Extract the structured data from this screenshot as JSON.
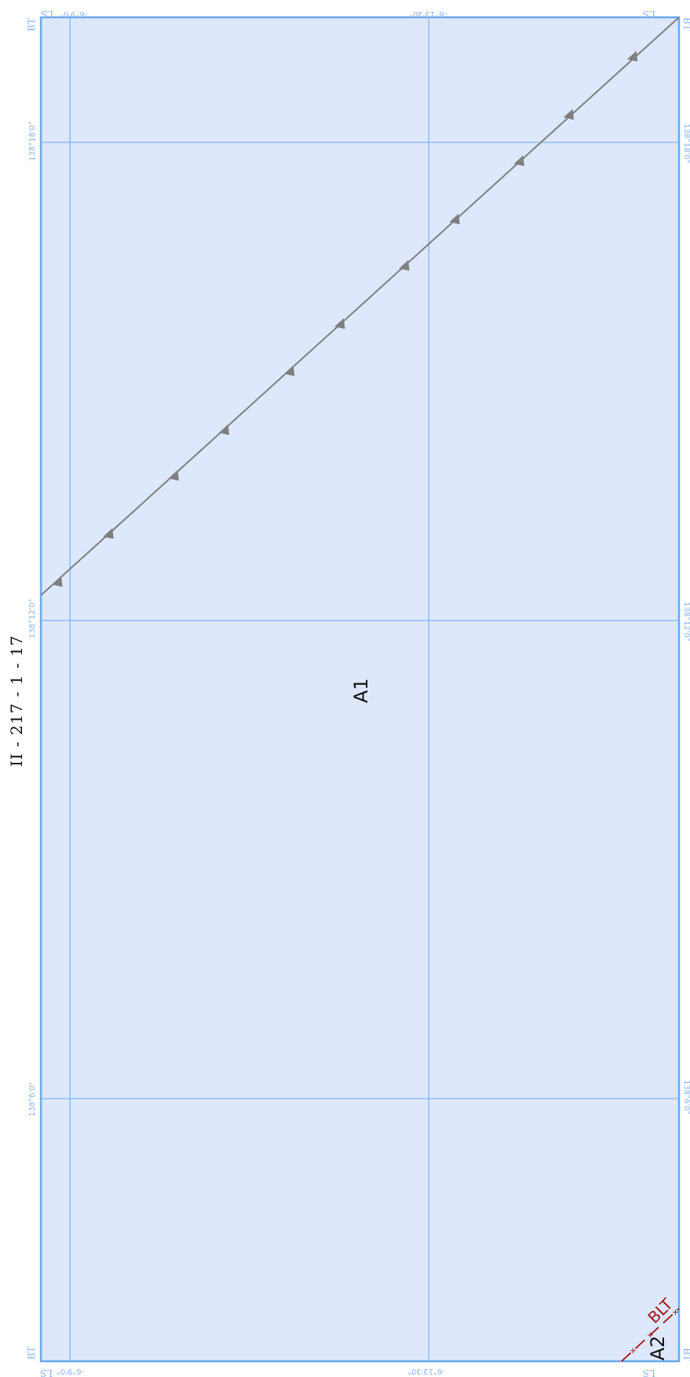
{
  "map": {
    "title": "II - 217 - 1 - 17",
    "areas": [
      {
        "id": "a1",
        "label": "A1"
      },
      {
        "id": "a2",
        "label": "A2"
      }
    ],
    "boundary": {
      "label": "BLT",
      "color": "#a11414"
    },
    "colors": {
      "fill": "#dde8fc",
      "border": "#6aa8ec",
      "grid": "#7eb3ee",
      "grid_label": "#8ab4f0",
      "fault_line": "#7f7f7f"
    },
    "grid_labels": {
      "lat_top_left": "-6°9'0\"",
      "lat_top_mid": "-6°13'30\"",
      "lon_left_upper": "138°18'0\"",
      "lon_left_mid": "138°12'0\"",
      "lon_left_lower": "138°6'0\"",
      "lon_right_upper": "138°18'0\"",
      "lon_right_mid": "138°12'0\"",
      "lon_right_lower": "138°6'0\"",
      "lat_bottom_left": "-6°9'0\"",
      "lat_bottom_mid": "-6°13'30\""
    },
    "corners": {
      "top_left_a": "BT",
      "top_left_b": "LS",
      "top_right_a": "LS",
      "top_right_b": "BT",
      "bottom_left_a": "BT",
      "bottom_left_b": "LS",
      "bottom_right_a": "LS",
      "bottom_right_b": "BT"
    }
  }
}
